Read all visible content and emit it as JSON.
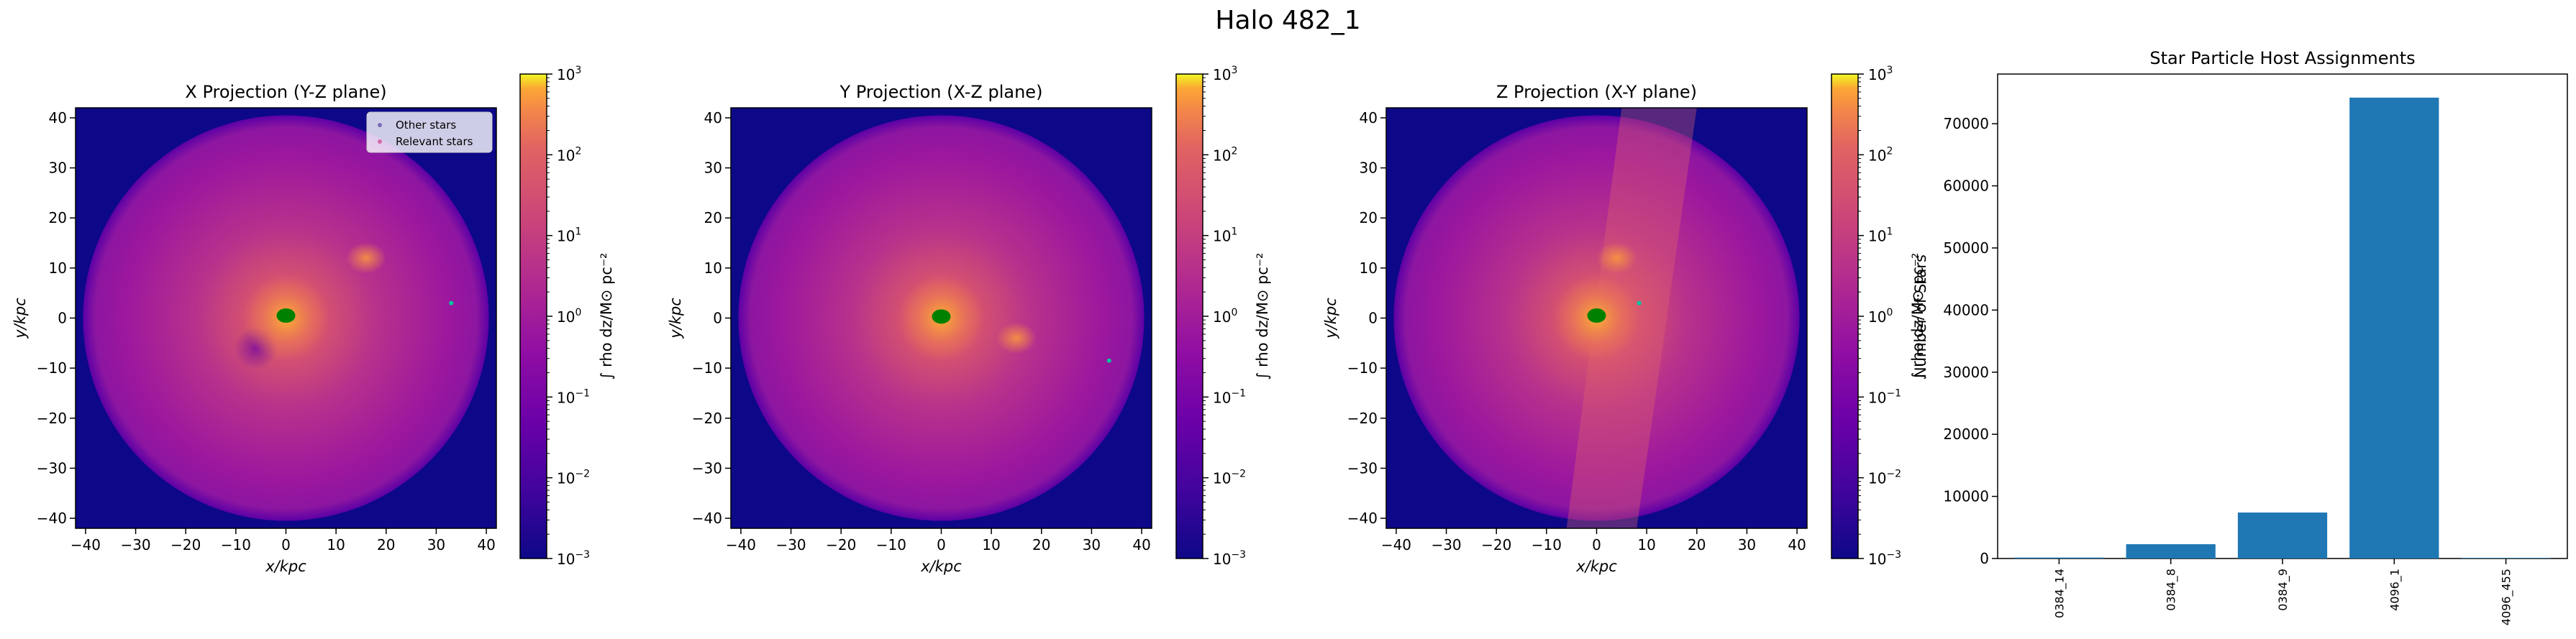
{
  "suptitle": "Halo 482_1",
  "projections": [
    {
      "title": "X Projection (Y-Z plane)",
      "show_legend": true,
      "cluster_x": 0,
      "cluster_y": 0.5,
      "extra_star": [
        33,
        3
      ],
      "bright_blob": [
        16,
        12
      ]
    },
    {
      "title": "Y Projection (X-Z plane)",
      "show_legend": false,
      "cluster_x": 0,
      "cluster_y": 0.3,
      "extra_star": [
        33.5,
        -8.5
      ],
      "bright_blob": [
        15,
        -4
      ]
    },
    {
      "title": "Z Projection (X-Y plane)",
      "show_legend": false,
      "cluster_x": 0,
      "cluster_y": 0.5,
      "extra_star": [
        8.5,
        3
      ],
      "bright_blob": [
        4,
        12
      ]
    }
  ],
  "axes": {
    "xlabel": "x/kpc",
    "ylabel": "y/kpc",
    "ticks": [
      "−40",
      "−30",
      "−20",
      "−10",
      "0",
      "10",
      "20",
      "30",
      "40"
    ],
    "tick_values": [
      -40,
      -30,
      -20,
      -10,
      0,
      10,
      20,
      30,
      40
    ],
    "lim": [
      -42,
      42
    ]
  },
  "colorbar": {
    "label": "∫ rho dz/M⊙ pc⁻²",
    "tick_base": "10",
    "tick_exponents": [
      "3",
      "2",
      "1",
      "0",
      "−1",
      "−2",
      "−3"
    ],
    "range_log": [
      -3,
      3
    ]
  },
  "legend": {
    "other_stars": "Other stars",
    "relevant_stars": "Relevant stars"
  },
  "colors": {
    "background": "#0d0887",
    "plasma_low": "#5c01a6",
    "plasma_mid": "#9c179e",
    "plasma_high": "#ed7953",
    "relevant_stars": "#008000",
    "other_stars": "#00c8a0",
    "bar": "#1f77b4"
  },
  "chart_data": {
    "type": "bar",
    "title": "Star Particle Host Assignments",
    "xlabel": "",
    "ylabel": "Number of Stars",
    "categories": [
      "0384_14",
      "0384_8",
      "0384_9",
      "4096_1",
      "4096_455"
    ],
    "values": [
      150,
      2300,
      7400,
      74200,
      80
    ],
    "ylim": [
      0,
      78000
    ],
    "yticks": [
      0,
      10000,
      20000,
      30000,
      40000,
      50000,
      60000,
      70000
    ]
  }
}
